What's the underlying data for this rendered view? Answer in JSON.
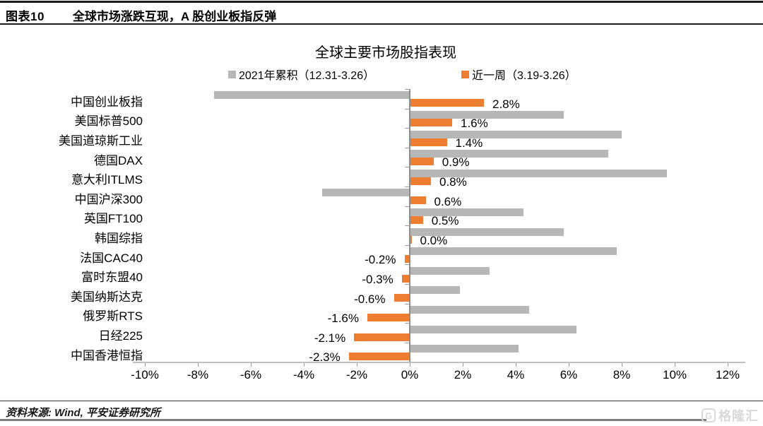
{
  "header": {
    "tag": "图表10",
    "title": "全球市场涨跌互现，A 股创业板指反弹"
  },
  "chart_data": {
    "type": "bar",
    "orientation": "horizontal",
    "title": "全球主要市场股指表现",
    "categories": [
      "中国创业板指",
      "美国标普500",
      "美国道琼斯工业",
      "德国DAX",
      "意大利ITLMS",
      "中国沪深300",
      "英国FT100",
      "韩国综指",
      "法国CAC40",
      "富时东盟40",
      "美国纳斯达克",
      "俄罗斯RTS",
      "日经225",
      "中国香港恒指"
    ],
    "series": [
      {
        "name": "2021年累积（12.31-3.26）",
        "color": "#b7b7b7",
        "values": [
          -7.4,
          5.8,
          8.0,
          7.5,
          9.7,
          -3.3,
          4.3,
          5.8,
          7.8,
          3.0,
          1.9,
          4.5,
          6.3,
          4.1
        ]
      },
      {
        "name": "近一周（3.19-3.26）",
        "color": "#ed7d31",
        "values": [
          2.8,
          1.6,
          1.4,
          0.9,
          0.8,
          0.6,
          0.5,
          0.0,
          -0.2,
          -0.3,
          -0.6,
          -1.6,
          -2.1,
          -2.3
        ],
        "data_labels": [
          "2.8%",
          "1.6%",
          "1.4%",
          "0.9%",
          "0.8%",
          "0.6%",
          "0.5%",
          "0.0%",
          "-0.2%",
          "-0.3%",
          "-0.6%",
          "-1.6%",
          "-2.1%",
          "-2.3%"
        ]
      }
    ],
    "xlim": [
      -10,
      12
    ],
    "x_ticks": [
      "-10%",
      "-8%",
      "-6%",
      "-4%",
      "-2%",
      "0%",
      "2%",
      "4%",
      "6%",
      "8%",
      "10%",
      "12%"
    ],
    "grid": "off",
    "legend_position": "top"
  },
  "footer": {
    "source": "资料来源: Wind, 平安证券研究所"
  },
  "watermark": {
    "icon": "G",
    "text": "格隆汇"
  }
}
